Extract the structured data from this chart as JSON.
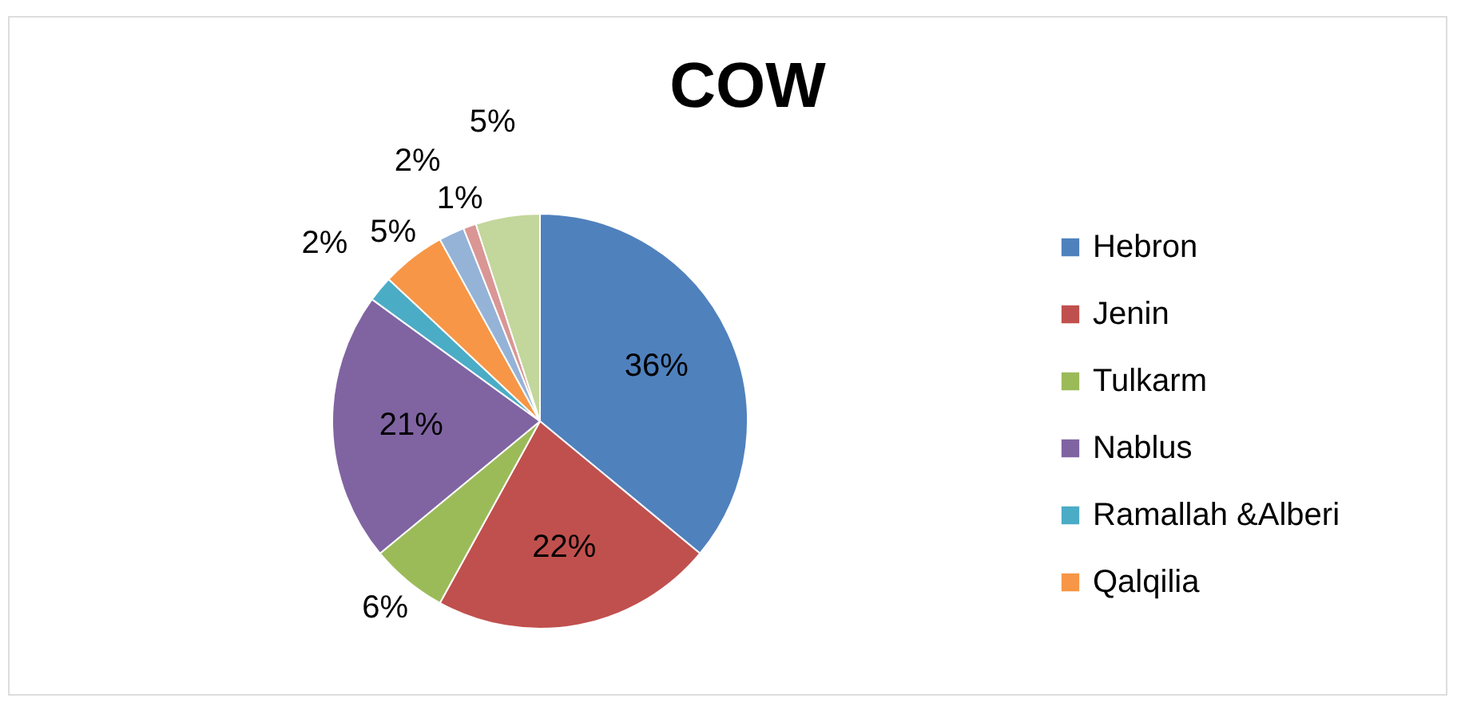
{
  "chart_data": {
    "type": "pie",
    "title": "COW",
    "categories": [
      "Hebron",
      "Jenin",
      "Tulkarm",
      "Nablus",
      "Ramallah &Alberi",
      "Qalqilia",
      null,
      null,
      null
    ],
    "values": [
      36,
      22,
      6,
      21,
      2,
      5,
      2,
      1,
      5
    ],
    "value_labels": [
      "36%",
      "22%",
      "6%",
      "21%",
      "2%",
      "5%",
      "2%",
      "1%",
      "5%"
    ],
    "colors": [
      "#4f81bd",
      "#c0504d",
      "#9bbb59",
      "#8064a2",
      "#4bacc6",
      "#f79646",
      "#95b3d7",
      "#d99694",
      "#c3d69b"
    ],
    "legend": "right"
  }
}
